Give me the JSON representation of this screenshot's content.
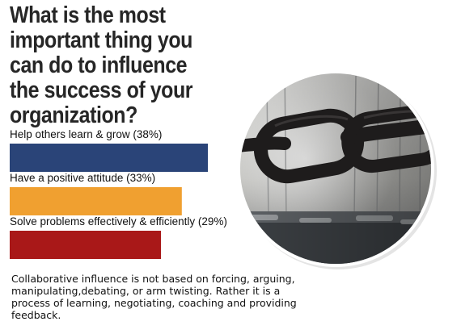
{
  "title": "What is the most important thing you can do to influence the success of your organization?",
  "chart_data": {
    "type": "bar",
    "orientation": "horizontal",
    "unit": "%",
    "categories": [
      "Help others learn & grow (38%)",
      "Have a positive attitude (33%)",
      "Solve problems effectively & efficiently (29%)"
    ],
    "values": [
      38,
      33,
      29
    ],
    "colors": [
      "#2a4478",
      "#f0a030",
      "#a91818"
    ],
    "grid": false,
    "legend": "none"
  },
  "photo": {
    "icon": "chain-link-photo"
  },
  "note": "Collaborative influence is not based on forcing, arguing, manipulating,debating, or arm twisting. Rather it is a process of learning, negotiating, coaching and providing feedback."
}
